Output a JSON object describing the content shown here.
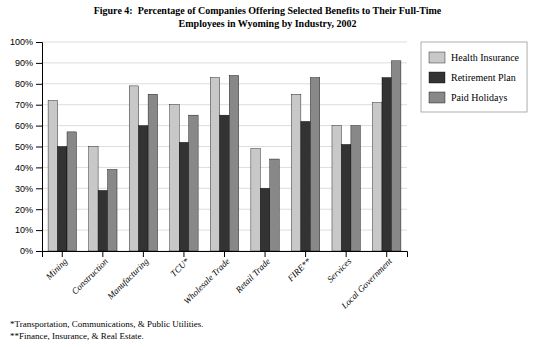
{
  "chart_data": {
    "type": "bar",
    "title": "Figure 4:  Percentage of Companies Offering Selected Benefits to Their Full-Time",
    "subtitle": "Employees in Wyoming by Industry, 2002",
    "annotations": [
      "*Transportation, Communications, & Public Utilities.",
      "**Finance, Insurance, & Real Estate."
    ],
    "categories": [
      "Mining",
      "Construction",
      "Manufacturing",
      "TCU*",
      "Wholesale Trade",
      "Retail Trade",
      "FIRE**",
      "Services",
      "Local Government"
    ],
    "series": [
      {
        "name": "Health Insurance",
        "color": "#c8c8c8",
        "values": [
          72,
          50,
          79,
          70,
          83,
          49,
          75,
          60,
          71
        ]
      },
      {
        "name": "Retirement Plan",
        "color": "#333333",
        "values": [
          50,
          29,
          60,
          52,
          65,
          30,
          62,
          51,
          83
        ]
      },
      {
        "name": "Paid Holidays",
        "color": "#888888",
        "values": [
          57,
          39,
          75,
          65,
          84,
          44,
          83,
          60,
          91
        ]
      }
    ],
    "ylim": [
      0,
      100
    ],
    "yticks": [
      {
        "value": 0,
        "label": "0%"
      },
      {
        "value": 10,
        "label": "10%"
      },
      {
        "value": 20,
        "label": "20%"
      },
      {
        "value": 30,
        "label": "30%"
      },
      {
        "value": 40,
        "label": "40%"
      },
      {
        "value": 50,
        "label": "50%"
      },
      {
        "value": 60,
        "label": "60%"
      },
      {
        "value": 70,
        "label": "70%"
      },
      {
        "value": 80,
        "label": "80%"
      },
      {
        "value": 90,
        "label": "90%"
      },
      {
        "value": 100,
        "label": "100%"
      }
    ],
    "grid": true,
    "legend": "right"
  }
}
